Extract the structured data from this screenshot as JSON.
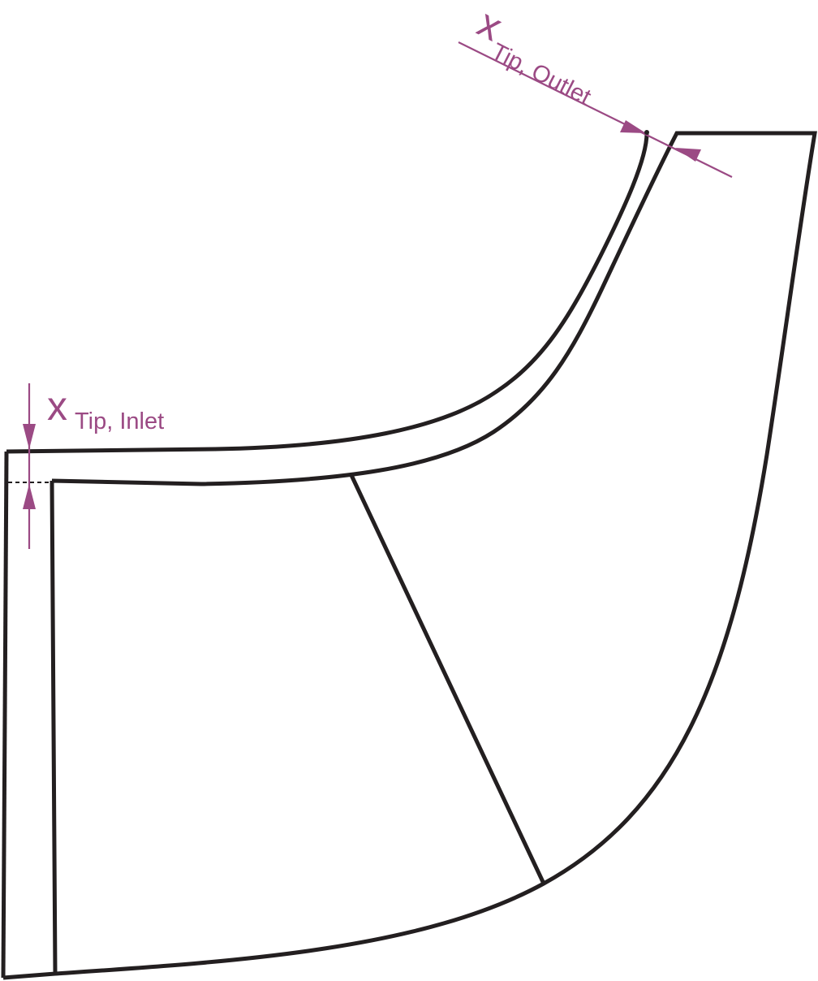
{
  "diagram": {
    "labels": {
      "inlet": {
        "symbol": "x",
        "subscript": "Tip, Inlet"
      },
      "outlet": {
        "symbol": "x",
        "subscript": "Tip, Outlet"
      }
    }
  },
  "colors": {
    "outline": "#231f20",
    "dimension": "#9b4a84"
  }
}
